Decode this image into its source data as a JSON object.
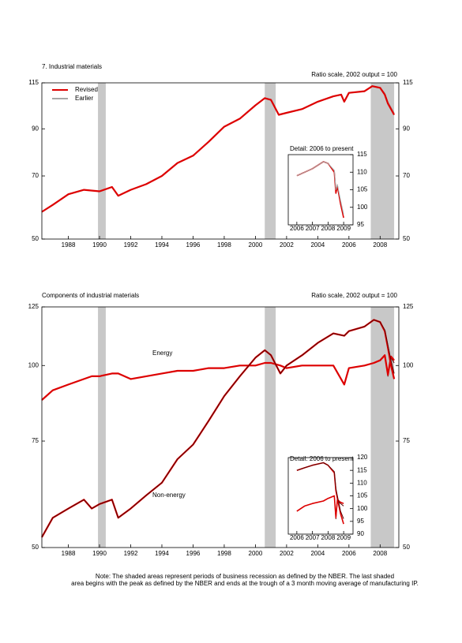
{
  "chart_data": [
    {
      "type": "line",
      "title": "7. Industrial materials",
      "subtitle": "Ratio scale, 2002 output = 100",
      "log_scale": true,
      "y_label_side": "both",
      "legend": "upper left",
      "xlim": [
        1986.3,
        2009.2
      ],
      "xticks": [
        1988,
        1990,
        1992,
        1994,
        1996,
        1998,
        2000,
        2002,
        2004,
        2006,
        2008
      ],
      "ylim": [
        50,
        115
      ],
      "yticks": [
        50,
        70,
        90,
        115
      ],
      "shaded_periods": [
        [
          1989.9,
          1990.4
        ],
        [
          2000.6,
          2001.3
        ],
        [
          2007.4,
          2008.9
        ]
      ],
      "x": [
        1986.3,
        1987,
        1988,
        1989,
        1990,
        1990.8,
        1991.2,
        1992,
        1993,
        1994,
        1995,
        1996,
        1997,
        1998,
        1999,
        2000,
        2000.6,
        2001,
        2001.5,
        2002,
        2003,
        2004,
        2005,
        2005.5,
        2005.7,
        2006,
        2007,
        2007.5,
        2008,
        2008.3,
        2008.5,
        2008.7,
        2008.9
      ],
      "series": [
        {
          "name": "Revised",
          "color": "#dd0000",
          "values": [
            57.8,
            60,
            63.5,
            65,
            64.5,
            66,
            63,
            65,
            67,
            70,
            75,
            78,
            84,
            91,
            95,
            102,
            106,
            105,
            97,
            98,
            100,
            104,
            107,
            108,
            104,
            109,
            110,
            113,
            112,
            108,
            103,
            100,
            97
          ]
        },
        {
          "name": "Earlier",
          "color": "#a8a8a8",
          "values": [
            57.8,
            60,
            63.5,
            65,
            64.5,
            66,
            63,
            65,
            67,
            70,
            75,
            78,
            84,
            91,
            95,
            102,
            106,
            105,
            97,
            98,
            100,
            104,
            107,
            108,
            104,
            109,
            110,
            113,
            112,
            109,
            104,
            101,
            98
          ]
        }
      ]
    },
    {
      "type": "line",
      "title": "Detail: 2006 to present",
      "log_scale": false,
      "y_label_side": "right",
      "inset": true,
      "xlim": [
        2005.45,
        2009.6
      ],
      "xticks": [
        2006,
        2007,
        2008,
        2009
      ],
      "ylim": [
        95,
        115
      ],
      "yticks": [
        95,
        100,
        105,
        110,
        115
      ],
      "x": [
        2006,
        2006.5,
        2007,
        2007.7,
        2008,
        2008.4,
        2008.5,
        2008.6,
        2008.8,
        2009.0
      ],
      "series": [
        {
          "color": "#a8a8a8",
          "values": [
            109,
            110,
            111,
            113,
            112.5,
            110.5,
            105,
            106.5,
            102,
            98
          ]
        },
        {
          "color": "#dd0000",
          "values": [
            109,
            110,
            111,
            113,
            112.5,
            110,
            104,
            106,
            101,
            97
          ]
        }
      ]
    },
    {
      "type": "line",
      "title": "Components of industrial materials",
      "subtitle": "Ratio scale, 2002 output = 100",
      "log_scale": true,
      "y_label_side": "both",
      "xlim": [
        1986.3,
        2009.2
      ],
      "xticks": [
        1988,
        1990,
        1992,
        1994,
        1996,
        1998,
        2000,
        2002,
        2004,
        2006,
        2008
      ],
      "ylim": [
        50,
        125
      ],
      "yticks": [
        50,
        75,
        100,
        125
      ],
      "shaded_periods": [
        [
          1989.9,
          1990.4
        ],
        [
          2000.6,
          2001.3
        ],
        [
          2007.4,
          2008.9
        ]
      ],
      "x": [
        1986.3,
        1987,
        1988,
        1989,
        1989.5,
        1990,
        1990.8,
        1991.2,
        1992,
        1993,
        1994,
        1995,
        1996,
        1997,
        1998,
        1999,
        2000,
        2000.6,
        2001,
        2001.6,
        2002,
        2003,
        2004,
        2005,
        2005.7,
        2006,
        2007,
        2007.6,
        2008,
        2008.3,
        2008.5,
        2008.7,
        2008.9
      ],
      "series": [
        {
          "color": "#5a0000",
          "values": [
            52,
            56,
            58,
            60,
            58,
            59,
            60,
            56,
            58,
            61,
            64,
            70,
            74,
            81,
            89,
            96,
            103,
            106,
            104,
            97,
            100,
            104,
            109,
            113,
            112,
            114,
            116,
            119,
            118,
            114.5,
            108,
            102,
            97
          ]
        },
        {
          "name": "Non-energy",
          "color": "#dd0000",
          "values": [
            52,
            56,
            58,
            60,
            58,
            59,
            60,
            56,
            58,
            61,
            64,
            70,
            74,
            81,
            89,
            96,
            103,
            106,
            104,
            97,
            100,
            104,
            109,
            113,
            112,
            114,
            116,
            119,
            118,
            114,
            107,
            100,
            95
          ]
        },
        {
          "color": "#dd0000",
          "values": [
            87.7,
            91,
            93,
            95,
            96,
            96,
            97,
            97,
            95,
            96,
            97,
            98,
            98,
            99,
            99,
            100,
            100,
            101,
            101,
            100,
            99,
            100,
            100,
            100,
            93,
            99,
            100,
            101,
            102,
            104,
            96.5,
            103.5,
            102
          ]
        },
        {
          "name": "Energy",
          "color": "#5a0000",
          "values": [
            87.7,
            91,
            93,
            95,
            96,
            96,
            97,
            97,
            95,
            96,
            97,
            98,
            98,
            99,
            99,
            100,
            100,
            101,
            101,
            100,
            99,
            100,
            100,
            100,
            93,
            99,
            100,
            101,
            102,
            104,
            96,
            103,
            101
          ]
        }
      ]
    },
    {
      "type": "line",
      "title": "Detail: 2006 to present",
      "log_scale": false,
      "y_label_side": "right",
      "inset": true,
      "xlim": [
        2005.45,
        2009.6
      ],
      "xticks": [
        2006,
        2007,
        2008,
        2009
      ],
      "ylim": [
        90,
        120
      ],
      "yticks": [
        90,
        95,
        100,
        105,
        110,
        115,
        120
      ],
      "x": [
        2006,
        2006.5,
        2007,
        2007.7,
        2008,
        2008.4,
        2008.5,
        2008.6,
        2008.8,
        2009.0
      ],
      "series": [
        {
          "color": "#5a0000",
          "values": [
            115,
            116,
            117,
            118,
            117,
            114.5,
            108,
            105,
            99,
            96
          ]
        },
        {
          "color": "#dd0000",
          "values": [
            115,
            116,
            117,
            118,
            117,
            114,
            107,
            104,
            98,
            94
          ]
        },
        {
          "color": "#dd0000",
          "values": [
            99,
            101,
            102,
            103,
            104,
            105,
            96.5,
            103.5,
            102.5,
            102
          ]
        },
        {
          "color": "#5a0000",
          "values": [
            99,
            101,
            102,
            103,
            104,
            105,
            96,
            103,
            102,
            101
          ]
        }
      ]
    }
  ],
  "note": [
    "Note: The shaded areas represent periods of business recession as defined by the NBER.  The last shaded",
    "area begins with the peak as defined by the NBER and ends at the trough of a 3 month moving average of manufacturing IP."
  ]
}
